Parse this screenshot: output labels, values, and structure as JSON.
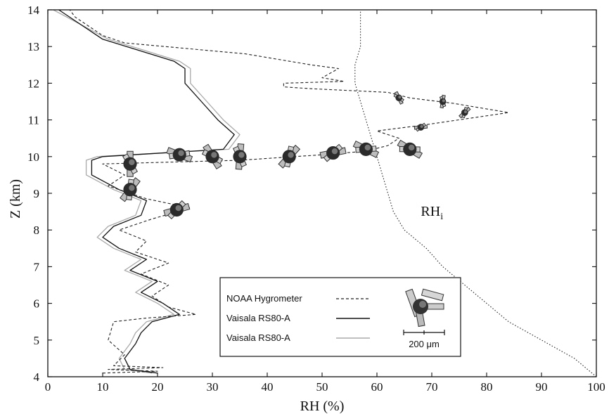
{
  "chart_data": {
    "type": "line",
    "title": "",
    "xlabel": "RH (%)",
    "ylabel": "Z (km)",
    "xlim": [
      0,
      100
    ],
    "ylim": [
      4,
      14
    ],
    "x_ticks": [
      "0",
      "10",
      "20",
      "30",
      "40",
      "50",
      "60",
      "70",
      "80",
      "90",
      "100"
    ],
    "y_ticks": [
      "4",
      "5",
      "6",
      "7",
      "8",
      "9",
      "10",
      "11",
      "12",
      "13",
      "14"
    ],
    "grid": false,
    "legend_position": "bottom-center",
    "annotation": {
      "text": "RH",
      "subscript": "i",
      "x": 68,
      "y": 8.5
    },
    "scale_bar_label": "200 μm",
    "series": [
      {
        "name": "NOAA Hygrometer",
        "style": "dashed",
        "color": "#222222",
        "points": [
          [
            10,
            4.1
          ],
          [
            20,
            4.15
          ],
          [
            11,
            4.2
          ],
          [
            21,
            4.25
          ],
          [
            12,
            4.3
          ],
          [
            14,
            4.6
          ],
          [
            11,
            5.0
          ],
          [
            12,
            5.5
          ],
          [
            18,
            5.6
          ],
          [
            27,
            5.7
          ],
          [
            22,
            5.9
          ],
          [
            19,
            6.2
          ],
          [
            22,
            6.5
          ],
          [
            17,
            6.8
          ],
          [
            22,
            7.1
          ],
          [
            16,
            7.4
          ],
          [
            18,
            7.7
          ],
          [
            13,
            8.0
          ],
          [
            19,
            8.3
          ],
          [
            26,
            8.6
          ],
          [
            18,
            8.85
          ],
          [
            15,
            9.0
          ],
          [
            11,
            9.2
          ],
          [
            14,
            9.5
          ],
          [
            10,
            9.8
          ],
          [
            35,
            9.9
          ],
          [
            50,
            10.05
          ],
          [
            58,
            10.15
          ],
          [
            62,
            10.3
          ],
          [
            64,
            10.5
          ],
          [
            60,
            10.7
          ],
          [
            68,
            10.85
          ],
          [
            84,
            11.2
          ],
          [
            74,
            11.45
          ],
          [
            66,
            11.6
          ],
          [
            62,
            11.75
          ],
          [
            48,
            11.85
          ],
          [
            43,
            11.9
          ],
          [
            43,
            12.0
          ],
          [
            54,
            12.05
          ],
          [
            50,
            12.15
          ],
          [
            53,
            12.4
          ],
          [
            48,
            12.5
          ],
          [
            36,
            12.8
          ],
          [
            14,
            13.1
          ],
          [
            10,
            13.3
          ],
          [
            5,
            13.8
          ],
          [
            4,
            14
          ]
        ]
      },
      {
        "name": "Vaisala RS80-A",
        "style": "solid",
        "color": "#111111",
        "points": [
          [
            20,
            4.1
          ],
          [
            15,
            4.2
          ],
          [
            14,
            4.5
          ],
          [
            16,
            4.9
          ],
          [
            17,
            5.2
          ],
          [
            19,
            5.5
          ],
          [
            24,
            5.7
          ],
          [
            21,
            6.0
          ],
          [
            17,
            6.3
          ],
          [
            20,
            6.6
          ],
          [
            15,
            6.9
          ],
          [
            18,
            7.2
          ],
          [
            13,
            7.5
          ],
          [
            10,
            7.8
          ],
          [
            12,
            8.1
          ],
          [
            17,
            8.4
          ],
          [
            18,
            8.8
          ],
          [
            13,
            9.1
          ],
          [
            8,
            9.5
          ],
          [
            8,
            9.9
          ],
          [
            10,
            10.0
          ],
          [
            32,
            10.2
          ],
          [
            34,
            10.6
          ],
          [
            31,
            11.0
          ],
          [
            28,
            11.5
          ],
          [
            25,
            12.0
          ],
          [
            25,
            12.4
          ],
          [
            23,
            12.6
          ],
          [
            10,
            13.2
          ],
          [
            2,
            14
          ]
        ]
      },
      {
        "name": "Vaisala RS80-A",
        "style": "solid",
        "color": "#aaaaaa",
        "points": [
          [
            19,
            4.1
          ],
          [
            14,
            4.2
          ],
          [
            13,
            4.5
          ],
          [
            15,
            4.9
          ],
          [
            16,
            5.2
          ],
          [
            18,
            5.5
          ],
          [
            23,
            5.7
          ],
          [
            20,
            6.0
          ],
          [
            16,
            6.3
          ],
          [
            19,
            6.6
          ],
          [
            14,
            6.9
          ],
          [
            17,
            7.2
          ],
          [
            12,
            7.5
          ],
          [
            9,
            7.8
          ],
          [
            11,
            8.1
          ],
          [
            16,
            8.4
          ],
          [
            17,
            8.8
          ],
          [
            12,
            9.1
          ],
          [
            7,
            9.5
          ],
          [
            7,
            9.9
          ],
          [
            9,
            10.0
          ],
          [
            33,
            10.2
          ],
          [
            35,
            10.6
          ],
          [
            32,
            11.0
          ],
          [
            29,
            11.5
          ],
          [
            26,
            12.0
          ],
          [
            26,
            12.4
          ],
          [
            24,
            12.6
          ],
          [
            11,
            13.2
          ],
          [
            1,
            14
          ]
        ]
      },
      {
        "name": "RHi",
        "style": "dotted",
        "color": "#222222",
        "points": [
          [
            100,
            4.0
          ],
          [
            96,
            4.5
          ],
          [
            90,
            5.0
          ],
          [
            84,
            5.5
          ],
          [
            80,
            6.0
          ],
          [
            76,
            6.5
          ],
          [
            72,
            7.0
          ],
          [
            69,
            7.5
          ],
          [
            65,
            8.0
          ],
          [
            63,
            8.5
          ],
          [
            62,
            9.0
          ],
          [
            61,
            9.5
          ],
          [
            60,
            10.0
          ],
          [
            59,
            10.5
          ],
          [
            58,
            11.0
          ],
          [
            57,
            11.5
          ],
          [
            56,
            12.0
          ],
          [
            56,
            12.5
          ],
          [
            57,
            13.0
          ],
          [
            57,
            13.5
          ],
          [
            57,
            14.0
          ]
        ]
      }
    ],
    "crystals": [
      {
        "x": 15,
        "y": 9.8
      },
      {
        "x": 15,
        "y": 9.1
      },
      {
        "x": 23.5,
        "y": 8.55
      },
      {
        "x": 24,
        "y": 10.05
      },
      {
        "x": 30,
        "y": 10.0
      },
      {
        "x": 35,
        "y": 10.0
      },
      {
        "x": 44,
        "y": 10.0
      },
      {
        "x": 52,
        "y": 10.1
      },
      {
        "x": 58,
        "y": 10.2
      },
      {
        "x": 64,
        "y": 11.6
      },
      {
        "x": 72,
        "y": 11.5
      },
      {
        "x": 76,
        "y": 11.2
      },
      {
        "x": 68,
        "y": 10.8
      },
      {
        "x": 66,
        "y": 10.2
      }
    ]
  }
}
